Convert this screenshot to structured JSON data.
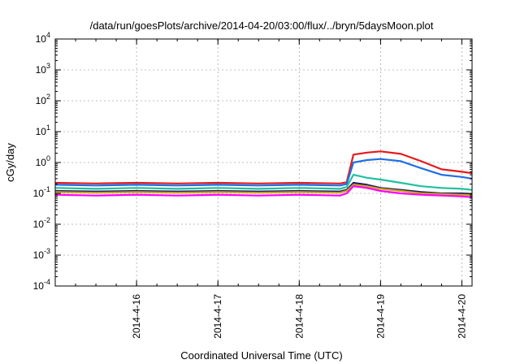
{
  "chart_data": {
    "type": "line",
    "title": "/data/run/goesPlots/archive/2014-04-20/03:00/flux/../bryn/5daysMoon.plot",
    "xlabel": "Coordinated Universal Time (UTC)",
    "ylabel": "cGy/day",
    "yscale": "log",
    "ylim": [
      0.0001,
      10000
    ],
    "xlim": [
      "2014-04-15 00:00",
      "2014-04-20 03:00"
    ],
    "grid": true,
    "y_ticks": [
      {
        "base": "10",
        "exp": "-4"
      },
      {
        "base": "10",
        "exp": "-3"
      },
      {
        "base": "10",
        "exp": "-2"
      },
      {
        "base": "10",
        "exp": "-1"
      },
      {
        "base": "10",
        "exp": "0"
      },
      {
        "base": "10",
        "exp": "1"
      },
      {
        "base": "10",
        "exp": "2"
      },
      {
        "base": "10",
        "exp": "3"
      },
      {
        "base": "10",
        "exp": "4"
      }
    ],
    "x_ticks": [
      "2014-4-16",
      "2014-4-17",
      "2014-4-18",
      "2014-4-19",
      "2014-4-20"
    ],
    "x": [
      "04-15 00:00",
      "04-15 12:00",
      "04-16 00:00",
      "04-16 12:00",
      "04-17 00:00",
      "04-17 12:00",
      "04-18 00:00",
      "04-18 12:00",
      "04-18 14:00",
      "04-18 16:00",
      "04-18 20:00",
      "04-19 00:00",
      "04-19 06:00",
      "04-19 12:00",
      "04-19 18:00",
      "04-20 00:00",
      "04-20 03:00"
    ],
    "series": [
      {
        "color": "#e41a1c",
        "values": [
          0.22,
          0.21,
          0.22,
          0.21,
          0.22,
          0.21,
          0.22,
          0.21,
          0.23,
          1.8,
          2.1,
          2.3,
          1.9,
          1.1,
          0.6,
          0.5,
          0.45
        ]
      },
      {
        "color": "#1f6fe5",
        "values": [
          0.19,
          0.18,
          0.19,
          0.18,
          0.19,
          0.18,
          0.19,
          0.18,
          0.2,
          1.0,
          1.2,
          1.3,
          1.1,
          0.65,
          0.4,
          0.34,
          0.3
        ]
      },
      {
        "color": "#20c0a0",
        "values": [
          0.15,
          0.14,
          0.15,
          0.14,
          0.15,
          0.14,
          0.15,
          0.14,
          0.16,
          0.4,
          0.32,
          0.28,
          0.22,
          0.17,
          0.15,
          0.14,
          0.13
        ]
      },
      {
        "color": "#202060",
        "values": [
          0.12,
          0.115,
          0.12,
          0.115,
          0.12,
          0.115,
          0.12,
          0.115,
          0.13,
          0.22,
          0.19,
          0.15,
          0.13,
          0.11,
          0.1,
          0.1,
          0.095
        ]
      },
      {
        "color": "#d0a020",
        "values": [
          0.11,
          0.105,
          0.11,
          0.105,
          0.11,
          0.105,
          0.11,
          0.105,
          0.12,
          0.19,
          0.17,
          0.14,
          0.12,
          0.1,
          0.095,
          0.09,
          0.088
        ]
      },
      {
        "color": "#ff00ff",
        "values": [
          0.09,
          0.085,
          0.09,
          0.085,
          0.09,
          0.085,
          0.09,
          0.085,
          0.1,
          0.17,
          0.15,
          0.12,
          0.1,
          0.09,
          0.085,
          0.08,
          0.075
        ]
      }
    ]
  }
}
